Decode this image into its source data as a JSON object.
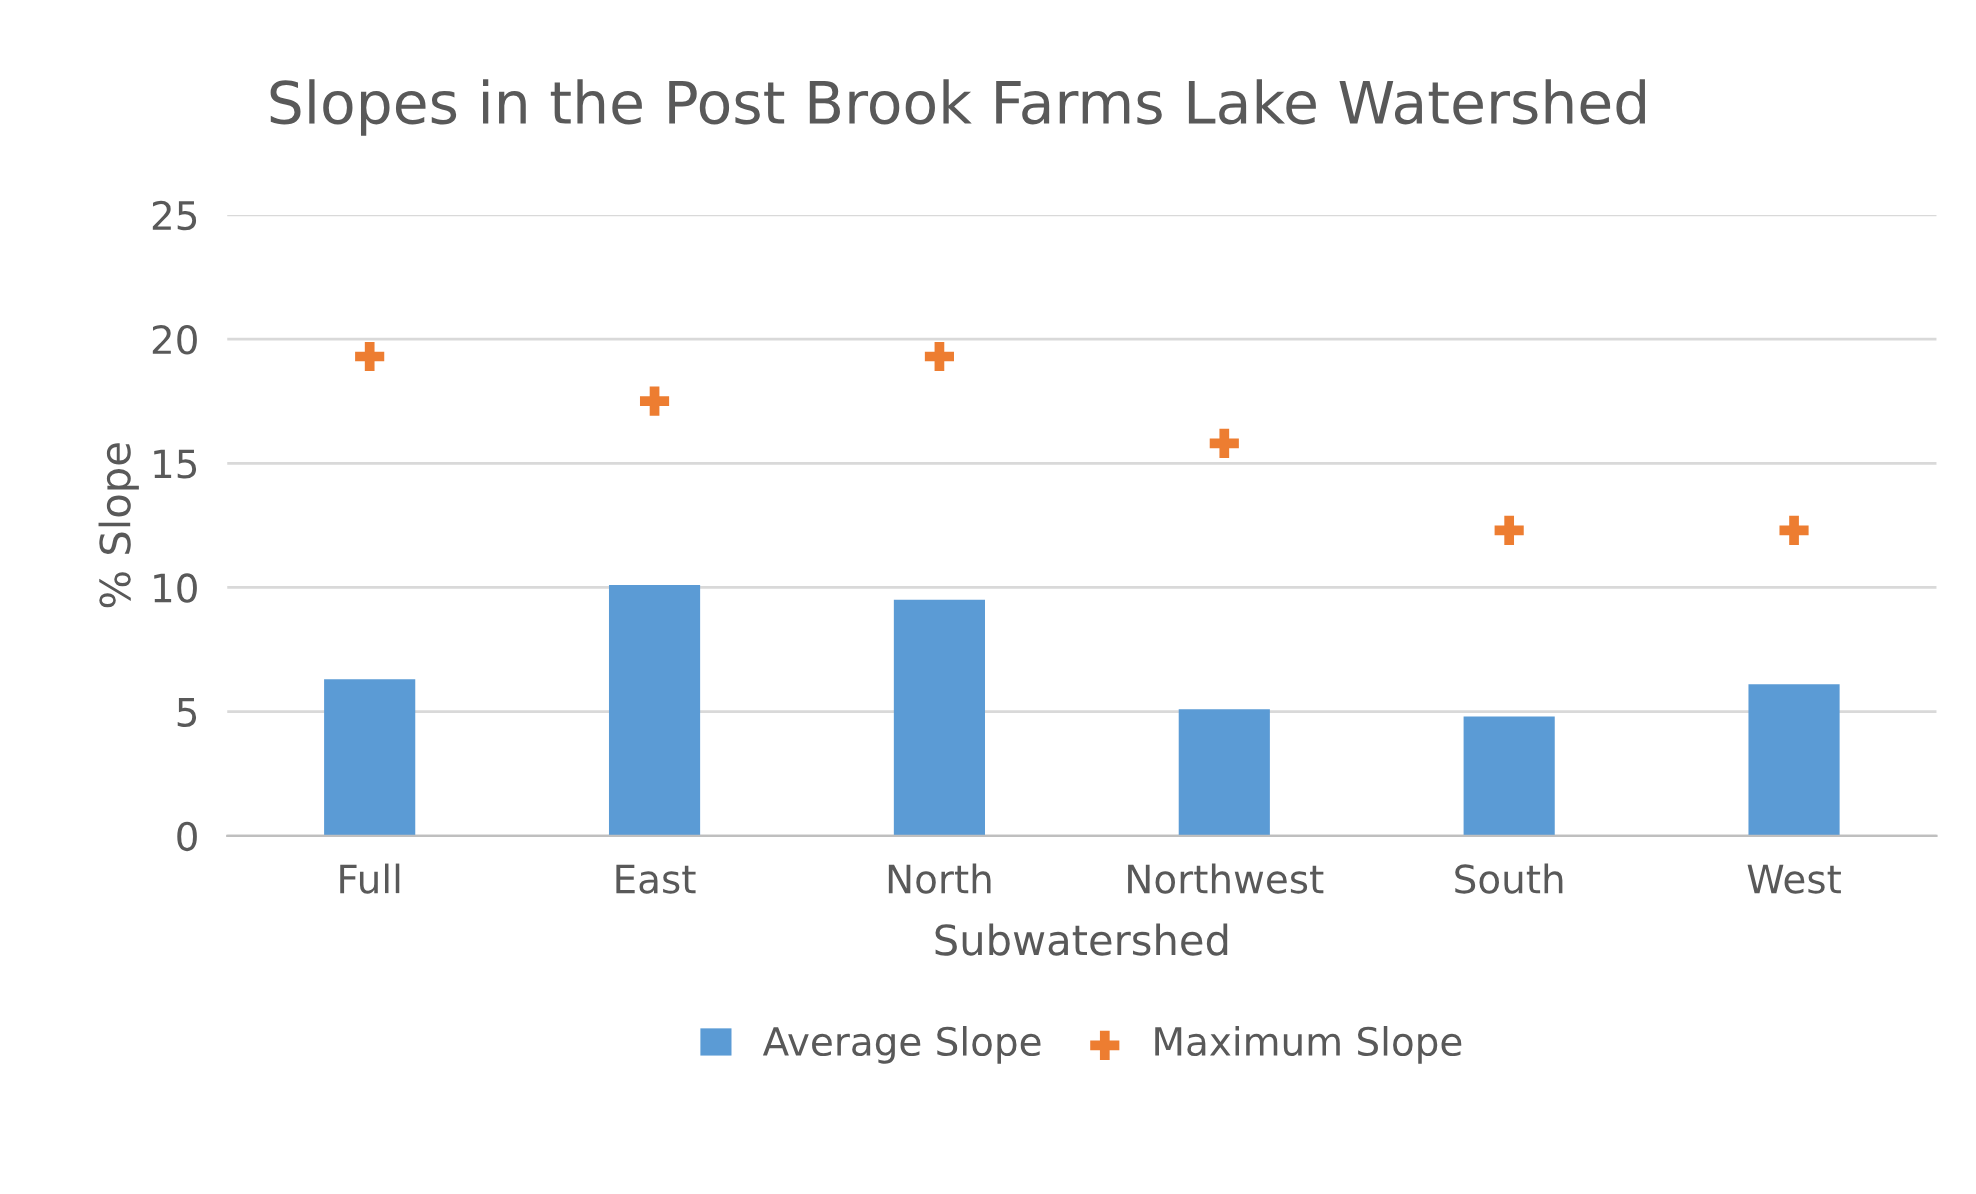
{
  "chart_data": {
    "type": "bar",
    "title": "Slopes in the Post Brook Farms Lake Watershed",
    "xlabel": "Subwatershed",
    "ylabel": "% Slope",
    "categories": [
      "Full",
      "East",
      "North",
      "Northwest",
      "South",
      "West"
    ],
    "series": [
      {
        "name": "Average Slope",
        "color": "#5b9bd5",
        "values": [
          6.3,
          10.1,
          9.5,
          5.1,
          4.8,
          6.1
        ]
      },
      {
        "name": "Maximum Slope",
        "type": "scatter",
        "color": "#ed7d31",
        "marker": "cross",
        "values": [
          19.3,
          17.5,
          19.3,
          15.8,
          12.3,
          12.3
        ]
      }
    ],
    "ylim": [
      0,
      25
    ],
    "yticks": [
      0,
      5,
      10,
      15,
      20,
      25
    ],
    "grid": "y",
    "legend": "bottom"
  }
}
